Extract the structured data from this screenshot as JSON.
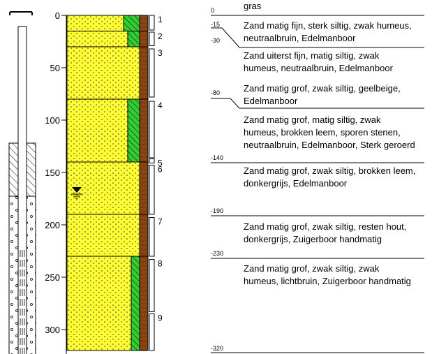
{
  "depth_axis": {
    "ticks": [
      {
        "value": 0,
        "label": "0"
      },
      {
        "value": 50,
        "label": "50"
      },
      {
        "value": 100,
        "label": "100"
      },
      {
        "value": 150,
        "label": "150"
      },
      {
        "value": 200,
        "label": "200"
      },
      {
        "value": 250,
        "label": "250"
      },
      {
        "value": 300,
        "label": "300"
      }
    ],
    "max_depth": 320
  },
  "water_table_depth": 170,
  "layers": [
    {
      "number": "1",
      "top": 0,
      "bottom": 15,
      "top_label": "0",
      "description": [
        "gras"
      ]
    },
    {
      "number": "2",
      "top": 15,
      "bottom": 30,
      "top_label": "-15",
      "description": [
        "Zand matig fijn, sterk siltig, zwak humeus,",
        "neutraalbruin,  Edelmanboor"
      ]
    },
    {
      "number": "3",
      "top": 30,
      "bottom": 80,
      "top_label": "-30",
      "description": [
        "Zand uiterst fijn, matig siltig, zwak",
        "humeus,  neutraalbruin,  Edelmanboor"
      ]
    },
    {
      "number": "4",
      "top": 80,
      "bottom": 140,
      "top_label": "-80",
      "description": [
        "Zand matig grof, zwak siltig, geelbeige,",
        "Edelmanboor"
      ]
    },
    {
      "number": "5",
      "top": 140,
      "bottom": 190,
      "top_label": "-140",
      "description": [
        "Zand matig grof, matig siltig, zwak",
        "humeus, brokken leem, sporen stenen,",
        "neutraalbruin, Edelmanboor, Sterk geroerd"
      ]
    },
    {
      "number": "6",
      "top": 190,
      "bottom": 230,
      "top_label": "-190",
      "description": [
        "Zand matig grof, zwak siltig, brokken leem,",
        "donkergrijs,  Edelmanboor"
      ]
    },
    {
      "number": "7",
      "top": 230,
      "bottom": 320,
      "top_label": "-230",
      "description": [
        "Zand matig grof, zwak siltig, resten hout,",
        "donkergrijs, Zuigerboor handmatig"
      ]
    },
    {
      "number": "8",
      "top": null,
      "bottom": null,
      "top_label": "",
      "description": [
        "Zand matig grof, zwak siltig, zwak",
        "humeus, lichtbruin, Zuigerboor handmatig"
      ]
    },
    {
      "number": "9",
      "top": null,
      "bottom": null,
      "top_label": "-320",
      "description": []
    }
  ],
  "colors": {
    "sand": "#ffff33",
    "silt": "#33cc33",
    "humus": "#8b4513",
    "line": "#000000"
  }
}
